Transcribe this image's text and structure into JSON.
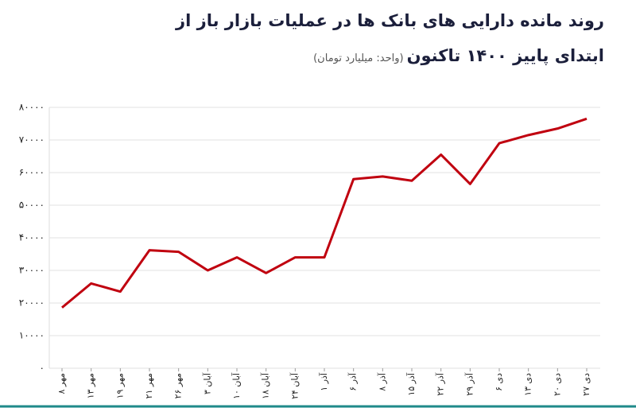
{
  "chart_data": {
    "type": "line",
    "title": "روند مانده دارایی های بانک ها در عملیات بازار باز از",
    "subtitle": "ابتدای پاییز ۱۴۰۰ تاکنون",
    "unit_note": "(واحد: میلیارد تومان)",
    "categories": [
      "۸ مهر",
      "۱۳ مهر",
      "۱۹ مهر",
      "۲۱ مهر",
      "۲۶ مهر",
      "۳ آبان",
      "۱۰ آبان",
      "۱۸ آبان",
      "۲۴ آبان",
      "۱ آذر",
      "۶ آذر",
      "۸ آذر",
      "۱۵ آذر",
      "۲۲ آذر",
      "۲۹ آذر",
      "۶ دی",
      "۱۳ دی",
      "۲۰ دی",
      "۲۷ دی"
    ],
    "values": [
      18600,
      26000,
      23500,
      36200,
      35700,
      30000,
      34000,
      29200,
      34000,
      34000,
      58000,
      58800,
      57500,
      65500,
      56500,
      69000,
      71500,
      73500,
      76500
    ],
    "color": "#c0000f",
    "ylim": [
      0,
      80000
    ],
    "yticks": [
      {
        "value": 0,
        "label": "۰"
      },
      {
        "value": 10000,
        "label": "۱۰۰۰۰"
      },
      {
        "value": 20000,
        "label": "۲۰۰۰۰"
      },
      {
        "value": 30000,
        "label": "۳۰۰۰۰"
      },
      {
        "value": 40000,
        "label": "۴۰۰۰۰"
      },
      {
        "value": 50000,
        "label": "۵۰۰۰۰"
      },
      {
        "value": 60000,
        "label": "۶۰۰۰۰"
      },
      {
        "value": 70000,
        "label": "۷۰۰۰۰"
      },
      {
        "value": 80000,
        "label": "۸۰۰۰۰"
      }
    ],
    "grid": true
  }
}
